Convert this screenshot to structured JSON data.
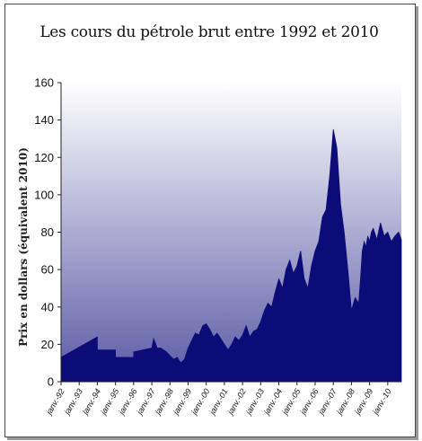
{
  "chart_data": {
    "type": "area",
    "title": "Les cours du pétrole brut entre 1992 et 2010",
    "xlabel": "",
    "ylabel": "Prix en dollars (équivalent 2010)",
    "ylim": [
      0,
      160
    ],
    "yticks": [
      0,
      20,
      40,
      60,
      80,
      100,
      120,
      140,
      160
    ],
    "xticks": [
      "janv.-92",
      "janv.-93",
      "janv.-94",
      "janv.-95",
      "janv.-96",
      "janv.-97",
      "janv.-98",
      "janv.-99",
      "janv.-00",
      "janv.-01",
      "janv.-02",
      "janv.-03",
      "janv.-04",
      "janv.-05",
      "janv.-06",
      "janv.-07",
      "janv.-08",
      "janv.-09",
      "janv.-10"
    ],
    "xlim": [
      1992.0,
      2010.75
    ],
    "series": [
      {
        "x": [
          1992.0,
          1994.0,
          1994.0,
          1995.0,
          1995.0,
          1996.0,
          1996.0,
          1996.5,
          1997.0,
          1997.1,
          1997.3,
          1997.5,
          1997.8,
          1998.0,
          1998.2,
          1998.4,
          1998.6,
          1998.8,
          1999.0,
          1999.2,
          1999.4,
          1999.6,
          1999.8,
          2000.0,
          2000.2,
          2000.4,
          2000.6,
          2000.8,
          2001.0,
          2001.2,
          2001.4,
          2001.6,
          2001.8,
          2002.0,
          2002.2,
          2002.4,
          2002.6,
          2002.8,
          2003.0,
          2003.2,
          2003.4,
          2003.6,
          2003.8,
          2004.0,
          2004.2,
          2004.4,
          2004.6,
          2004.8,
          2005.0,
          2005.2,
          2005.4,
          2005.6,
          2005.8,
          2006.0,
          2006.2,
          2006.4,
          2006.6,
          2006.8,
          2007.0,
          2007.2,
          2007.4,
          2007.6,
          2007.8,
          2008.0,
          2008.2,
          2008.4,
          2008.5,
          2008.6,
          2008.7,
          2008.8,
          2008.9,
          2009.0,
          2009.1,
          2009.2,
          2009.4,
          2009.6,
          2009.8,
          2010.0,
          2010.2,
          2010.4,
          2010.6,
          2010.75
        ],
        "values": [
          13,
          24,
          17,
          17,
          13,
          13,
          16,
          17,
          18,
          23,
          18,
          18,
          16,
          14,
          12,
          13,
          10,
          12,
          18,
          22,
          26,
          25,
          30,
          31,
          28,
          24,
          26,
          23,
          20,
          17,
          20,
          24,
          22,
          25,
          30,
          24,
          27,
          28,
          32,
          38,
          42,
          40,
          48,
          55,
          50,
          60,
          65,
          58,
          62,
          70,
          55,
          50,
          62,
          70,
          75,
          88,
          92,
          110,
          135,
          125,
          95,
          80,
          60,
          38,
          45,
          42,
          55,
          70,
          75,
          72,
          78,
          75,
          80,
          82,
          76,
          85,
          78,
          80,
          75,
          78,
          80,
          76
        ]
      }
    ],
    "fill_color": "#0c0c78",
    "background_top": "#ffffff",
    "background_bottom": "#5a5aa6"
  }
}
